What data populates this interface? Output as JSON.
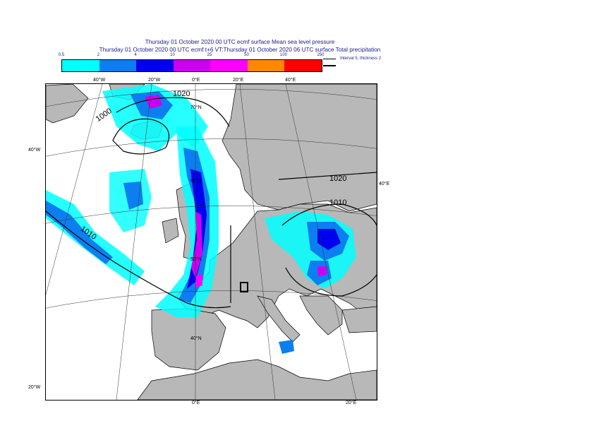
{
  "title": {
    "line1": "Thursday 01 October 2020 00 UTC ecmf surface  Mean sea level pressure",
    "line2": "Thursday 01 October 2020 00 UTC ecmf t+6 VT:Thursday 01 October 2020 06 UTC surface  Total precipitation"
  },
  "legend": {
    "ticks": [
      "0.5",
      "2",
      "4",
      "10",
      "25",
      "50",
      "100",
      "250"
    ],
    "colors": [
      "#00ffff",
      "#0b7ff0",
      "#0000ee",
      "#cc00ee",
      "#ff00ff",
      "#ff8800",
      "#ff0000"
    ],
    "note": "Interval 5, thickness 2"
  },
  "map": {
    "isobars": [
      "1020",
      "1000",
      "1020",
      "1010",
      "1010"
    ],
    "grid_labels": {
      "top": [
        "40°W",
        "20°W",
        "0°E",
        "20°E",
        "40°E"
      ],
      "left": [
        "40°W",
        "20°W"
      ],
      "right": [
        "40°E"
      ],
      "bottom": [
        "0°E",
        "20°E"
      ],
      "inner": [
        "70°N",
        "60°N",
        "50°N",
        "40°N"
      ]
    }
  }
}
